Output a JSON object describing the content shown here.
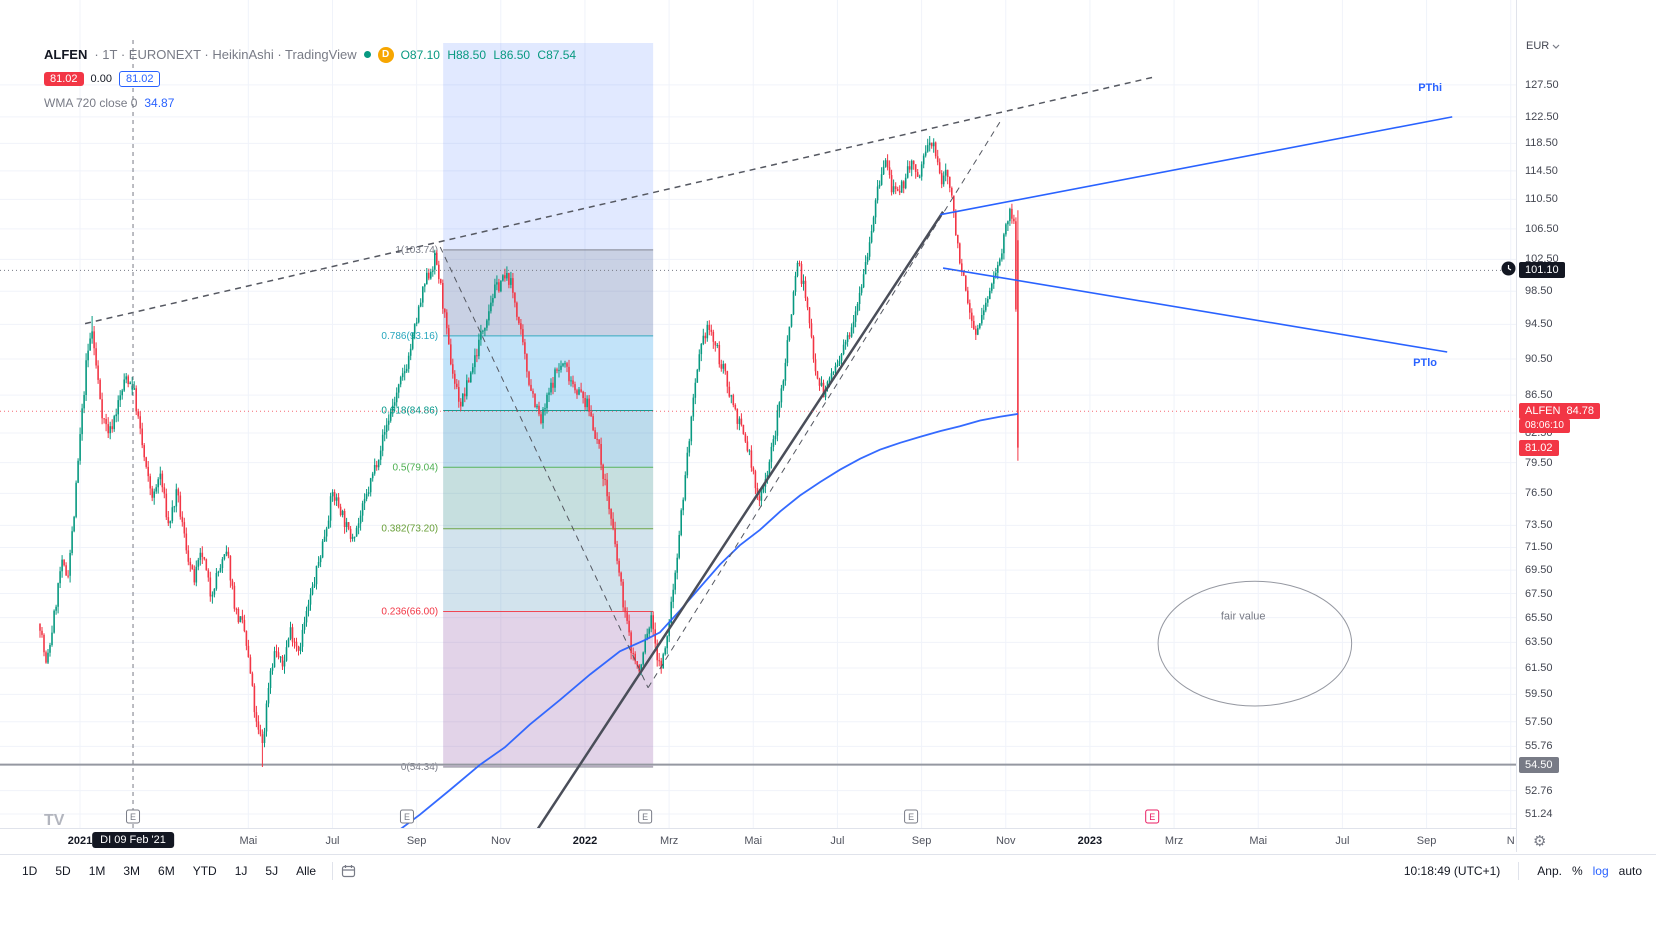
{
  "header": {
    "title_symbol": "ALFEN",
    "title_rest": "· 1T · EURONEXT · HeikinAshi · TradingView",
    "interval_badge": "D",
    "ohlc": {
      "o": "O87.10",
      "h": "H88.50",
      "l": "L86.50",
      "c": "C87.54"
    },
    "bid": "81.02",
    "spread": "0.00",
    "ask": "81.02",
    "indicator": {
      "name": "WMA 720 close 0",
      "value": "34.87"
    }
  },
  "price_scale": {
    "currency": "EUR",
    "ticks": [
      "127.50",
      "122.50",
      "118.50",
      "114.50",
      "110.50",
      "106.50",
      "102.50",
      "98.50",
      "94.50",
      "90.50",
      "86.50",
      "82.50",
      "79.50",
      "76.50",
      "73.50",
      "71.50",
      "69.50",
      "67.50",
      "65.50",
      "63.50",
      "61.50",
      "59.50",
      "57.50",
      "55.76",
      "52.76",
      "51.24"
    ],
    "crosshair_price": "101.10",
    "symbol_label": {
      "name": "ALFEN",
      "price": "84.78",
      "countdown": "08:06:10"
    },
    "bid_label": "81.02",
    "line_label": "54.50"
  },
  "time_axis": {
    "tooltip": "DI 09 Feb '21",
    "labels": [
      {
        "text": "2021",
        "m": 0,
        "bold": true
      },
      {
        "text": "Mai",
        "m": 4
      },
      {
        "text": "Jul",
        "m": 6
      },
      {
        "text": "Sep",
        "m": 8
      },
      {
        "text": "Nov",
        "m": 10
      },
      {
        "text": "2022",
        "m": 12,
        "bold": true
      },
      {
        "text": "Mrz",
        "m": 14
      },
      {
        "text": "Mai",
        "m": 16
      },
      {
        "text": "Jul",
        "m": 18
      },
      {
        "text": "Sep",
        "m": 20
      },
      {
        "text": "Nov",
        "m": 22
      },
      {
        "text": "2023",
        "m": 24,
        "bold": true
      },
      {
        "text": "Mrz",
        "m": 26
      },
      {
        "text": "Mai",
        "m": 28
      },
      {
        "text": "Jul",
        "m": 30
      },
      {
        "text": "Sep",
        "m": 32
      },
      {
        "text": "N",
        "m": 34
      }
    ]
  },
  "toolbar": {
    "ranges": [
      "1D",
      "5D",
      "1M",
      "3M",
      "6M",
      "YTD",
      "1J",
      "5J",
      "Alle"
    ],
    "clock": "10:18:49 (UTC+1)",
    "adjust": "Anp.",
    "percent": "%",
    "log": "log",
    "auto": "auto"
  },
  "logo": "TV",
  "colors": {
    "up": "#089981",
    "down": "#f23645",
    "wma": "#2962ff",
    "forecast_blue": "#2962ff",
    "grid": "#f0f3fa",
    "dashed_line": "#555861",
    "solid_line": "#4a4e59",
    "highlight_band": "rgba(41,98,255,0.14)",
    "crosshair": "#787b86"
  },
  "chart_data": {
    "type": "candlestick",
    "style": "heikin-ashi",
    "symbol": "ALFEN",
    "exchange": "EURONEXT",
    "interval": "1T",
    "scale": "log",
    "y_unit": "EUR",
    "x_unit": "months since Jan 2021",
    "ylim": [
      51.24,
      127.5
    ],
    "price_anchors": [
      [
        -0.95,
        65
      ],
      [
        -0.8,
        61.5
      ],
      [
        -0.6,
        66
      ],
      [
        -0.45,
        70
      ],
      [
        -0.3,
        69
      ],
      [
        -0.15,
        74
      ],
      [
        0,
        82
      ],
      [
        0.15,
        90
      ],
      [
        0.28,
        94
      ],
      [
        0.4,
        89
      ],
      [
        0.55,
        84
      ],
      [
        0.7,
        82.5
      ],
      [
        0.9,
        85.5
      ],
      [
        1.1,
        88.5
      ],
      [
        1.26,
        87.5
      ],
      [
        1.45,
        82
      ],
      [
        1.6,
        78
      ],
      [
        1.75,
        76
      ],
      [
        1.9,
        78.5
      ],
      [
        2.1,
        73.5
      ],
      [
        2.3,
        76.5
      ],
      [
        2.5,
        72
      ],
      [
        2.7,
        68.5
      ],
      [
        2.9,
        71
      ],
      [
        3.1,
        67.5
      ],
      [
        3.3,
        69.5
      ],
      [
        3.5,
        71
      ],
      [
        3.7,
        66
      ],
      [
        3.9,
        64.5
      ],
      [
        4.05,
        61
      ],
      [
        4.2,
        57
      ],
      [
        4.35,
        56
      ],
      [
        4.5,
        61
      ],
      [
        4.65,
        63
      ],
      [
        4.8,
        61.5
      ],
      [
        5,
        64.5
      ],
      [
        5.2,
        63
      ],
      [
        5.4,
        66
      ],
      [
        5.6,
        69
      ],
      [
        5.8,
        72.5
      ],
      [
        6,
        76.5
      ],
      [
        6.2,
        75
      ],
      [
        6.4,
        72.5
      ],
      [
        6.6,
        73.5
      ],
      [
        6.8,
        76
      ],
      [
        7,
        79
      ],
      [
        7.2,
        82
      ],
      [
        7.4,
        85
      ],
      [
        7.6,
        87.5
      ],
      [
        7.8,
        90.5
      ],
      [
        8,
        95
      ],
      [
        8.2,
        99.5
      ],
      [
        8.45,
        102.8
      ],
      [
        8.6,
        98
      ],
      [
        8.75,
        92
      ],
      [
        8.9,
        88
      ],
      [
        9.05,
        85.5
      ],
      [
        9.2,
        87.5
      ],
      [
        9.4,
        91
      ],
      [
        9.6,
        94.5
      ],
      [
        9.8,
        98
      ],
      [
        10,
        99.8
      ],
      [
        10.2,
        100.2
      ],
      [
        10.35,
        97
      ],
      [
        10.5,
        92.5
      ],
      [
        10.65,
        88.5
      ],
      [
        10.8,
        86
      ],
      [
        10.95,
        83.5
      ],
      [
        11.1,
        86
      ],
      [
        11.3,
        89
      ],
      [
        11.5,
        90
      ],
      [
        11.7,
        88
      ],
      [
        11.9,
        86.5
      ],
      [
        12.1,
        85
      ],
      [
        12.3,
        81.5
      ],
      [
        12.5,
        77
      ],
      [
        12.7,
        72
      ],
      [
        12.9,
        67
      ],
      [
        13.1,
        63
      ],
      [
        13.3,
        61
      ],
      [
        13.45,
        64
      ],
      [
        13.6,
        65.5
      ],
      [
        13.75,
        61.5
      ],
      [
        13.9,
        62.5
      ],
      [
        14.1,
        68
      ],
      [
        14.3,
        75
      ],
      [
        14.5,
        83
      ],
      [
        14.7,
        90
      ],
      [
        14.9,
        94.5
      ],
      [
        15.1,
        92
      ],
      [
        15.3,
        89
      ],
      [
        15.5,
        86
      ],
      [
        15.7,
        83
      ],
      [
        15.9,
        80.5
      ],
      [
        16.1,
        76
      ],
      [
        16.3,
        78
      ],
      [
        16.5,
        82
      ],
      [
        16.7,
        88
      ],
      [
        16.9,
        96
      ],
      [
        17.05,
        102.5
      ],
      [
        17.2,
        99
      ],
      [
        17.35,
        94
      ],
      [
        17.5,
        89
      ],
      [
        17.7,
        86.5
      ],
      [
        17.85,
        89
      ],
      [
        18,
        89.5
      ],
      [
        18.15,
        91.5
      ],
      [
        18.3,
        94
      ],
      [
        18.5,
        98
      ],
      [
        18.7,
        103
      ],
      [
        18.85,
        108
      ],
      [
        19,
        113
      ],
      [
        19.15,
        116
      ],
      [
        19.3,
        112
      ],
      [
        19.45,
        110.5
      ],
      [
        19.6,
        113.5
      ],
      [
        19.75,
        116
      ],
      [
        19.9,
        113
      ],
      [
        20.05,
        116.5
      ],
      [
        20.2,
        118.5
      ],
      [
        20.32,
        118
      ],
      [
        20.45,
        112.5
      ],
      [
        20.6,
        115
      ],
      [
        20.75,
        109
      ],
      [
        20.9,
        103
      ],
      [
        21.05,
        98
      ],
      [
        21.2,
        94.5
      ],
      [
        21.35,
        93.8
      ],
      [
        21.5,
        96.5
      ],
      [
        21.65,
        99
      ],
      [
        21.8,
        102
      ],
      [
        21.95,
        105
      ],
      [
        22.1,
        108.5
      ],
      [
        22.2,
        107.5
      ],
      [
        22.3,
        81.02
      ]
    ],
    "special_bars": [
      {
        "m": 0.28,
        "set": {
          "h": 95.5
        }
      },
      {
        "m": 1.26,
        "set": {
          "o": 87.1,
          "h": 88.5,
          "l": 86.5,
          "c": 87.54
        }
      },
      {
        "m": 4.35,
        "set": {
          "l": 54.34
        }
      },
      {
        "m": 8.45,
        "set": {
          "h": 103.74
        }
      },
      {
        "m": 20.2,
        "set": {
          "h": 119.6
        }
      },
      {
        "m": 22.3,
        "set": {
          "o": 105,
          "h": 109,
          "l": 79.7,
          "c": 81.02
        }
      }
    ],
    "wma_720": [
      [
        6.8,
        47.5
      ],
      [
        7.32,
        49.7
      ],
      [
        8.08,
        51.2
      ],
      [
        8.79,
        52.8
      ],
      [
        9.51,
        54.5
      ],
      [
        10.1,
        55.7
      ],
      [
        10.69,
        57.3
      ],
      [
        11.41,
        59.1
      ],
      [
        12.12,
        61
      ],
      [
        12.83,
        62.8
      ],
      [
        13.43,
        63.7
      ],
      [
        13.78,
        64.3
      ],
      [
        14.26,
        66.1
      ],
      [
        14.73,
        68
      ],
      [
        15.21,
        70
      ],
      [
        15.68,
        71.7
      ],
      [
        16.16,
        73.1
      ],
      [
        16.64,
        74.8
      ],
      [
        17.11,
        76.3
      ],
      [
        17.59,
        77.6
      ],
      [
        18.06,
        78.8
      ],
      [
        18.54,
        79.9
      ],
      [
        19.01,
        80.8
      ],
      [
        19.49,
        81.5
      ],
      [
        19.96,
        82.1
      ],
      [
        20.44,
        82.7
      ],
      [
        20.91,
        83.2
      ],
      [
        21.39,
        83.8
      ],
      [
        21.86,
        84.2
      ],
      [
        22.29,
        84.5
      ]
    ],
    "fibonacci": {
      "from_m": 8.63,
      "to_m": 13.62,
      "levels": [
        {
          "ratio": "1",
          "label": "1(103.74)",
          "price": 103.74,
          "color": "#787b86"
        },
        {
          "ratio": "0.786",
          "label": "0.786(93.16)",
          "price": 93.16,
          "color": "#26a6bd"
        },
        {
          "ratio": "0.618",
          "label": "0.618(84.86)",
          "price": 84.86,
          "color": "#009688"
        },
        {
          "ratio": "0.5",
          "label": "0.5(79.04)",
          "price": 79.04,
          "color": "#4caf50"
        },
        {
          "ratio": "0.382",
          "label": "0.382(73.20)",
          "price": 73.2,
          "color": "#689f38"
        },
        {
          "ratio": "0.236",
          "label": "0.236(66.00)",
          "price": 66,
          "color": "#f23645"
        },
        {
          "ratio": "0",
          "label": "0(54.34)",
          "price": 54.34,
          "color": "#787b86"
        }
      ],
      "fills": [
        "rgba(120,123,134,0.22)",
        "rgba(38,198,218,0.16)",
        "rgba(0,150,136,0.16)",
        "rgba(76,175,80,0.18)",
        "rgba(76,175,80,0.10)",
        "rgba(242,54,69,0.12)"
      ]
    },
    "highlight_range": {
      "from_m": 8.63,
      "to_m": 13.62,
      "top_y": 43
    },
    "trendlines": [
      {
        "name": "rising-resistance",
        "style": "dashed",
        "from": [
          0.12,
          94.6
        ],
        "to": [
          25.55,
          128.8
        ],
        "width": 1.5
      },
      {
        "name": "corrective-decline",
        "style": "dashed",
        "from": [
          8.56,
          104.1
        ],
        "to": [
          13.5,
          60
        ],
        "width": 1
      },
      {
        "name": "recovery-trend",
        "style": "dashed",
        "from": [
          13.5,
          60
        ],
        "to": [
          21.86,
          121.7
        ],
        "width": 1
      },
      {
        "name": "major-support",
        "style": "solid",
        "from": [
          9.9,
          46.5
        ],
        "to": [
          20.51,
          108.8
        ],
        "width": 2.5
      }
    ],
    "forecast_lines": [
      {
        "label": "PThi",
        "from": [
          20.44,
          108.4
        ],
        "to": [
          32.61,
          122.5
        ]
      },
      {
        "label": "PTlo",
        "from": [
          20.51,
          101.4
        ],
        "to": [
          32.49,
          91.3
        ]
      }
    ],
    "horizontal_line": {
      "price": 54.5
    },
    "price_line": {
      "price": 84.78
    },
    "crosshair": {
      "m": 1.26,
      "price": 101.1
    },
    "annotations": [
      {
        "label": "fair value",
        "m": 27.92,
        "price": 63.4,
        "rx_m": 2.3,
        "ry_ln": 0.078
      }
    ],
    "earnings_markers": [
      {
        "m": 1.26,
        "projected": false
      },
      {
        "m": 7.77,
        "projected": false
      },
      {
        "m": 13.43,
        "projected": false
      },
      {
        "m": 19.75,
        "projected": false
      },
      {
        "m": 25.48,
        "projected": true
      }
    ]
  }
}
